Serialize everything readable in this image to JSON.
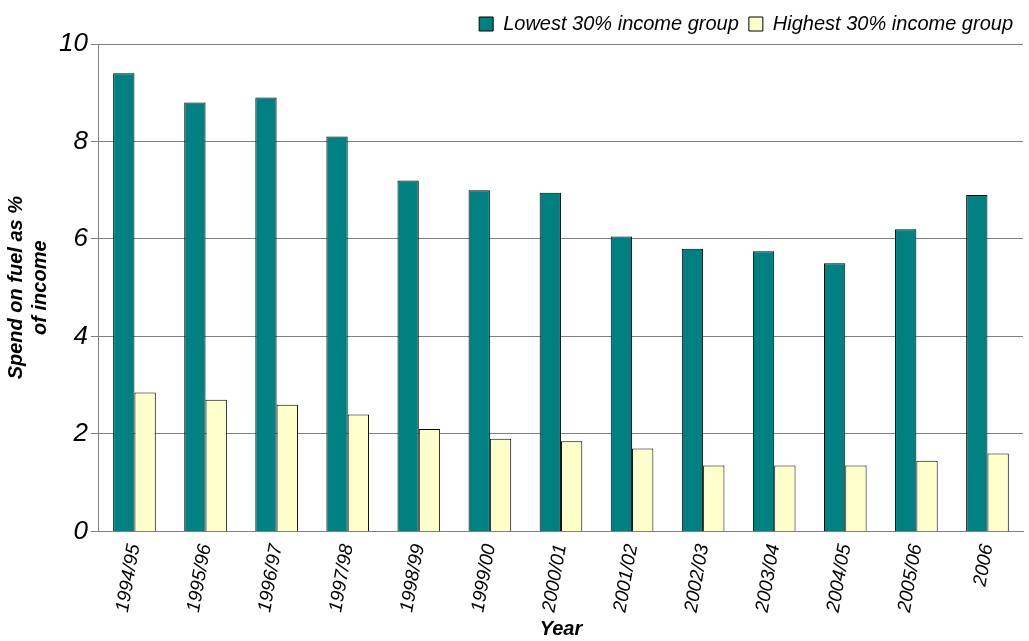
{
  "chart_data": {
    "type": "bar",
    "xlabel": "Year",
    "ylabel": "Spend on fuel as % of income",
    "categories": [
      "1994/95",
      "1995/96",
      "1996/97",
      "1997/98",
      "1998/99",
      "1999/00",
      "2000/01",
      "2001/02",
      "2002/03",
      "2003/04",
      "2004/05",
      "2005/06",
      "2006"
    ],
    "series": [
      {
        "name": "Lowest 30% income group",
        "color": "#008080",
        "values": [
          9.4,
          8.8,
          8.9,
          8.1,
          7.2,
          7.0,
          6.95,
          6.05,
          5.8,
          5.75,
          5.5,
          6.2,
          6.9
        ]
      },
      {
        "name": "Highest 30% income group",
        "color": "#ffffcc",
        "values": [
          2.85,
          2.7,
          2.6,
          2.4,
          2.1,
          1.9,
          1.85,
          1.7,
          1.35,
          1.35,
          1.35,
          1.45,
          1.6
        ]
      }
    ],
    "ylim": [
      0,
      10
    ],
    "yticks": [
      0,
      2,
      4,
      6,
      8,
      10
    ],
    "grid": "y",
    "legend": "top"
  }
}
